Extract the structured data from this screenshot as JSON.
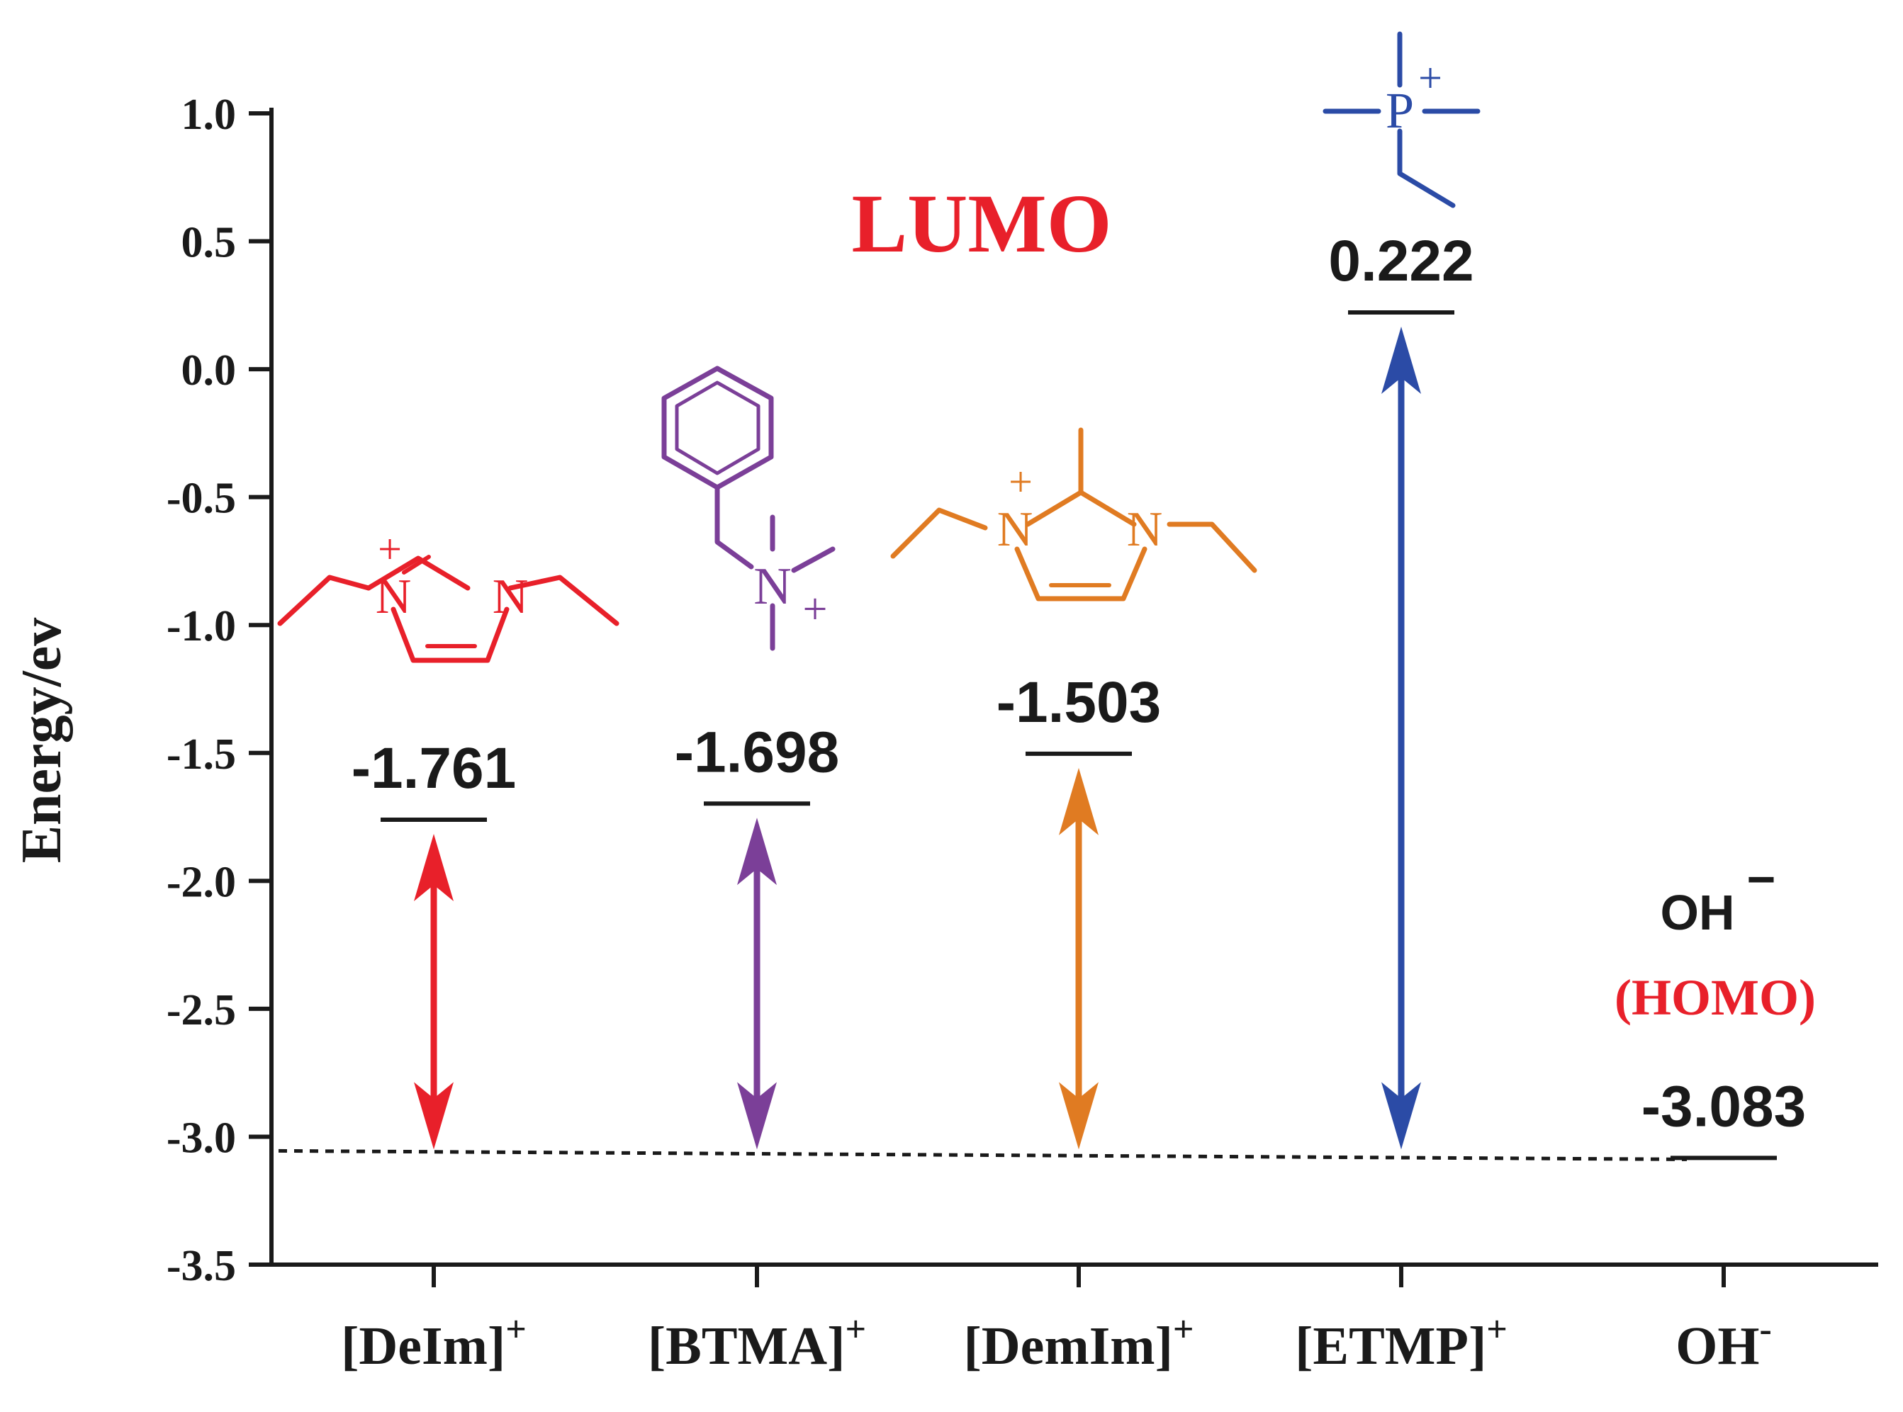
{
  "chart_data": {
    "type": "energy-level diagram",
    "ylabel": "Energy/ev",
    "ylim": [
      -3.5,
      1.0
    ],
    "yticks": [
      "1.0",
      "0.5",
      "0.0",
      "-0.5",
      "-1.0",
      "-1.5",
      "-2.0",
      "-2.5",
      "-3.0",
      "-3.5"
    ],
    "ytick_values": [
      1.0,
      0.5,
      0.0,
      -0.5,
      -1.0,
      -1.5,
      -2.0,
      -2.5,
      -3.0,
      -3.5
    ],
    "lumo_title": "LUMO",
    "homo_level": -3.083,
    "categories": [
      {
        "base": "[DeIm]",
        "sup": "+",
        "value": -1.761,
        "label": "-1.761",
        "color": "#e8202a",
        "structure": "imidazolium-diethyl"
      },
      {
        "base": "[BTMA]",
        "sup": "+",
        "value": -1.698,
        "label": "-1.698",
        "color": "#7b3f98",
        "structure": "benzyltrimethylammonium"
      },
      {
        "base": "[DemIm]",
        "sup": "+",
        "value": -1.503,
        "label": "-1.503",
        "color": "#e07b22",
        "structure": "imidazolium-diethyl-methyl"
      },
      {
        "base": "[ETMP]",
        "sup": "+",
        "value": 0.222,
        "label": "0.222",
        "color": "#2b4ba6",
        "structure": "ethyltrimethylphosphonium"
      },
      {
        "base": "OH",
        "sup": "-",
        "value": -3.083,
        "label": "-3.083",
        "color": "#1a1a1a",
        "structure": "hydroxide"
      }
    ],
    "oh_annotation": {
      "species": "OH",
      "charge": "−",
      "tag": "(HOMO)",
      "tag_color": "#e8202a"
    },
    "structure_atoms": {
      "nitrogen": "N",
      "phosphorus": "P",
      "charge": "+"
    }
  }
}
